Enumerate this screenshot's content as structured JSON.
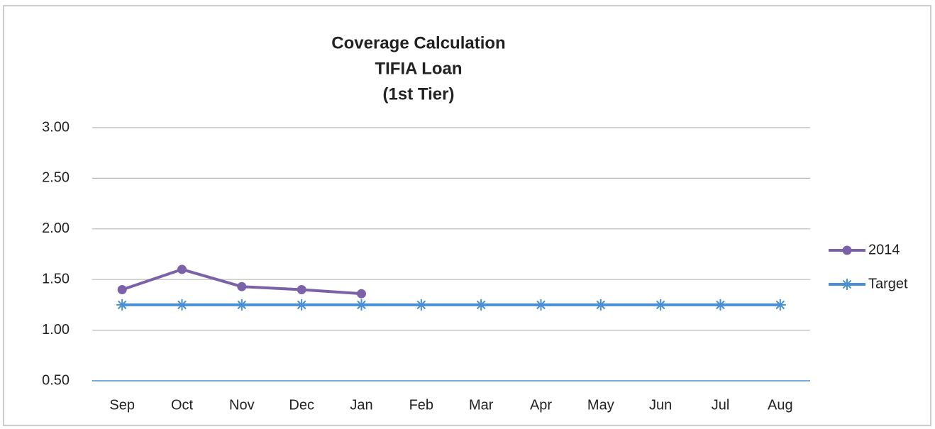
{
  "chart_data": {
    "type": "line",
    "title": [
      "Coverage Calculation",
      "TIFIA Loan",
      "(1st Tier)"
    ],
    "categories": [
      "Sep",
      "Oct",
      "Nov",
      "Dec",
      "Jan",
      "Feb",
      "Mar",
      "Apr",
      "May",
      "Jun",
      "Jul",
      "Aug"
    ],
    "series": [
      {
        "name": "2014",
        "color": "#7b62a8",
        "marker": "circle",
        "values": [
          1.4,
          1.6,
          1.43,
          1.4,
          1.36,
          null,
          null,
          null,
          null,
          null,
          null,
          null
        ]
      },
      {
        "name": "Target",
        "color": "#4a8fd6",
        "marker": "asterisk",
        "values": [
          1.25,
          1.25,
          1.25,
          1.25,
          1.25,
          1.25,
          1.25,
          1.25,
          1.25,
          1.25,
          1.25,
          1.25
        ]
      }
    ],
    "ylim": [
      0.5,
      3.0
    ],
    "yticks": [
      {
        "value": 0.5,
        "label": "0.50"
      },
      {
        "value": 1.0,
        "label": "1.00"
      },
      {
        "value": 1.5,
        "label": "1.50"
      },
      {
        "value": 2.0,
        "label": "2.00"
      },
      {
        "value": 2.5,
        "label": "2.50"
      },
      {
        "value": 3.0,
        "label": "3.00"
      }
    ],
    "grid": true,
    "legend": "right"
  }
}
